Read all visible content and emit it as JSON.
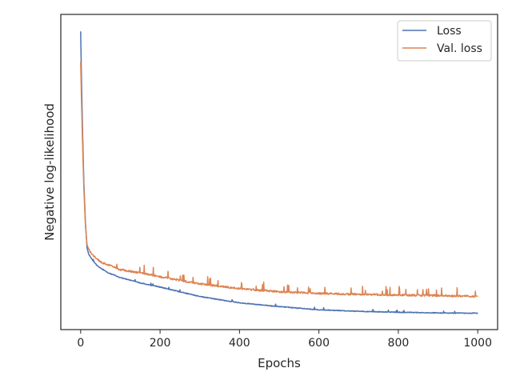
{
  "chart_data": {
    "type": "line",
    "xlabel": "Epochs",
    "ylabel": "Negative log-likelihood",
    "xlim": [
      -50,
      1050
    ],
    "ylim": [
      0,
      1
    ],
    "x_ticks": [
      0,
      200,
      400,
      600,
      800,
      1000
    ],
    "y_ticks_labeled": false,
    "grid": false,
    "legend_position": "top-right",
    "series": [
      {
        "name": "Loss",
        "color": "#4c72b0",
        "x": [
          0,
          2,
          5,
          8,
          12,
          16,
          20,
          25,
          30,
          40,
          50,
          70,
          100,
          150,
          200,
          300,
          400,
          500,
          600,
          700,
          800,
          900,
          1000
        ],
        "values": [
          0.946,
          0.8,
          0.62,
          0.47,
          0.34,
          0.26,
          0.24,
          0.23,
          0.22,
          0.205,
          0.195,
          0.18,
          0.165,
          0.148,
          0.135,
          0.105,
          0.085,
          0.073,
          0.063,
          0.058,
          0.055,
          0.053,
          0.052
        ]
      },
      {
        "name": "Val. loss",
        "color": "#dd8452",
        "x": [
          0,
          2,
          5,
          8,
          12,
          16,
          20,
          25,
          30,
          40,
          50,
          70,
          100,
          150,
          200,
          300,
          400,
          500,
          600,
          700,
          800,
          900,
          1000
        ],
        "values": [
          0.85,
          0.73,
          0.58,
          0.45,
          0.33,
          0.27,
          0.255,
          0.245,
          0.237,
          0.225,
          0.215,
          0.205,
          0.19,
          0.18,
          0.168,
          0.145,
          0.13,
          0.12,
          0.115,
          0.112,
          0.11,
          0.108,
          0.105
        ]
      }
    ]
  }
}
